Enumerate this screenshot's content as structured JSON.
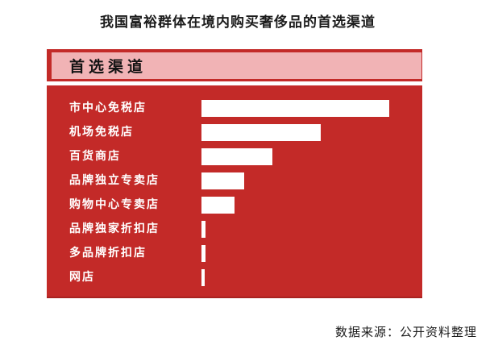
{
  "title": "我国富裕群体在境内购买奢侈品的首选渠道",
  "source_note": "数据来源：公开资料整理",
  "panel": {
    "header_label": "首选渠道",
    "colors": {
      "header_bg": "#f1b3b5",
      "body_bg": "#c32a28",
      "bar_fill": "#ffffff",
      "header_text": "#131313",
      "label_text": "#ffffff"
    }
  },
  "chart_data": {
    "type": "bar",
    "orientation": "horizontal",
    "title": "首选渠道",
    "categories": [
      "市中心免税店",
      "机场免税店",
      "百货商店",
      "品牌独立专卖店",
      "购物中心专卖店",
      "品牌独家折扣店",
      "多品牌折扣店",
      "网店"
    ],
    "values": [
      233,
      148,
      88,
      53,
      41,
      5,
      5,
      4
    ],
    "value_unit": "relative bar length in px (no numeric data labels shown in image)",
    "xlim": [
      0,
      233
    ],
    "grid": false,
    "legend": false,
    "data_labels": false,
    "axes_shown": false
  }
}
